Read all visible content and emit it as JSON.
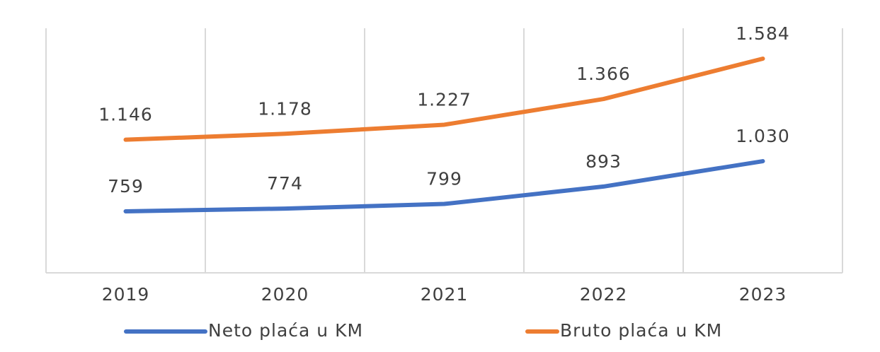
{
  "chart_data": {
    "type": "line",
    "categories": [
      "2019",
      "2020",
      "2021",
      "2022",
      "2023"
    ],
    "series": [
      {
        "name": "Neto plaća u KM",
        "color": "#4472c4",
        "values": [
          759,
          774,
          799,
          893,
          1030
        ],
        "value_labels": [
          "759",
          "774",
          "799",
          "893",
          "1.030"
        ]
      },
      {
        "name": "Bruto plaća u KM",
        "color": "#ed7d31",
        "values": [
          1146,
          1178,
          1227,
          1366,
          1584
        ],
        "value_labels": [
          "1.146",
          "1.178",
          "1.227",
          "1.366",
          "1.584"
        ]
      }
    ],
    "grid": true
  }
}
